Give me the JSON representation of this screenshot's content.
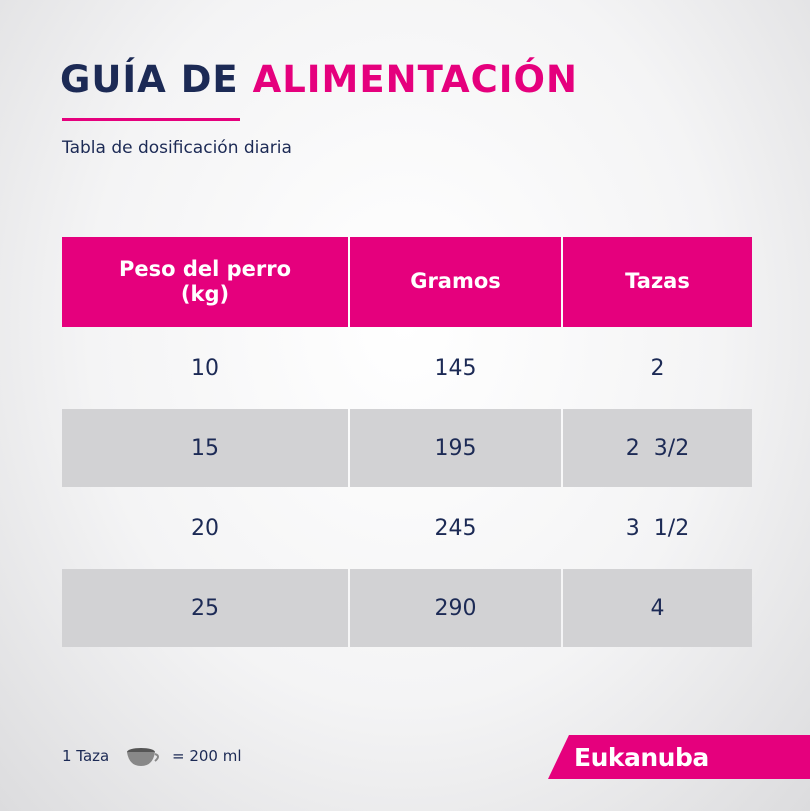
{
  "header": {
    "title_part1": "GUÍA DE",
    "title_part2": "ALIMENTACIÓN",
    "subtitle": "Tabla de dosificación diaria"
  },
  "table": {
    "columns": [
      "Peso del perro (kg)",
      "Gramos",
      "Tazas"
    ],
    "rows": [
      [
        "10",
        "145",
        "2"
      ],
      [
        "15",
        "195",
        "2  3/2"
      ],
      [
        "20",
        "245",
        "3  1/2"
      ],
      [
        "25",
        "290",
        "4"
      ]
    ]
  },
  "footer": {
    "unit_left": "1 Taza",
    "unit_right": "= 200 ml",
    "brand": "Eukanuba"
  }
}
